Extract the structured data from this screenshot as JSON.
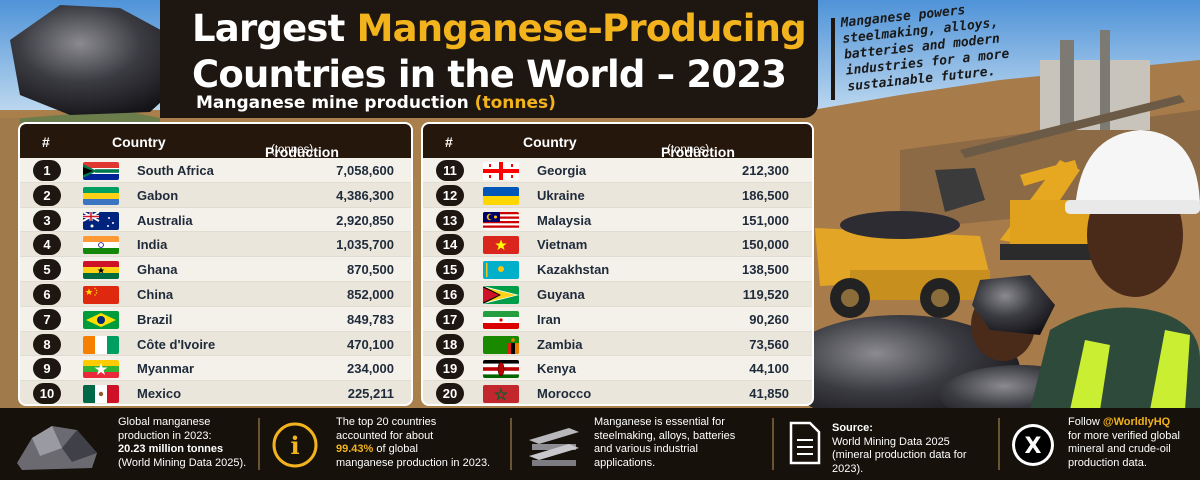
{
  "header": {
    "title_part1": "Largest ",
    "title_highlight": "Manganese-Producing",
    "title_line2": "Countries in the World – 2023",
    "subtitle": "Manganese mine production ",
    "subtitle_highlight": "(tonnes)",
    "tagline": "Manganese powers steelmaking, alloys, batteries and modern industries for a more sustainable future."
  },
  "table": {
    "col_rank": "#",
    "col_country": "Country",
    "col_production": "Production",
    "col_unit": "(tonnes)",
    "left": [
      {
        "rank": "1",
        "country": "South Africa",
        "production": "7,058,600",
        "flag": "za"
      },
      {
        "rank": "2",
        "country": "Gabon",
        "production": "4,386,300",
        "flag": "ga"
      },
      {
        "rank": "3",
        "country": "Australia",
        "production": "2,920,850",
        "flag": "au"
      },
      {
        "rank": "4",
        "country": "India",
        "production": "1,035,700",
        "flag": "in"
      },
      {
        "rank": "5",
        "country": "Ghana",
        "production": "870,500",
        "flag": "gh"
      },
      {
        "rank": "6",
        "country": "China",
        "production": "852,000",
        "flag": "cn"
      },
      {
        "rank": "7",
        "country": "Brazil",
        "production": "849,783",
        "flag": "br"
      },
      {
        "rank": "8",
        "country": "Côte d'Ivoire",
        "production": "470,100",
        "flag": "ci"
      },
      {
        "rank": "9",
        "country": "Myanmar",
        "production": "234,000",
        "flag": "mm"
      },
      {
        "rank": "10",
        "country": "Mexico",
        "production": "225,211",
        "flag": "mx"
      }
    ],
    "right": [
      {
        "rank": "11",
        "country": "Georgia",
        "production": "212,300",
        "flag": "ge"
      },
      {
        "rank": "12",
        "country": "Ukraine",
        "production": "186,500",
        "flag": "ua"
      },
      {
        "rank": "13",
        "country": "Malaysia",
        "production": "151,000",
        "flag": "my"
      },
      {
        "rank": "14",
        "country": "Vietnam",
        "production": "150,000",
        "flag": "vn"
      },
      {
        "rank": "15",
        "country": "Kazakhstan",
        "production": "138,500",
        "flag": "kz"
      },
      {
        "rank": "16",
        "country": "Guyana",
        "production": "119,520",
        "flag": "gy"
      },
      {
        "rank": "17",
        "country": "Iran",
        "production": "90,260",
        "flag": "ir"
      },
      {
        "rank": "18",
        "country": "Zambia",
        "production": "73,560",
        "flag": "zm"
      },
      {
        "rank": "19",
        "country": "Kenya",
        "production": "44,100",
        "flag": "ke"
      },
      {
        "rank": "20",
        "country": "Morocco",
        "production": "41,850",
        "flag": "ma"
      }
    ]
  },
  "footer": {
    "global_line1": "Global manganese",
    "global_line2": "production in 2023:",
    "global_value": "20.23 million tonnes",
    "global_source": "(World Mining Data 2025).",
    "share_line1": "The top 20 countries",
    "share_line2": "accounted for about",
    "share_value": "99.43%",
    "share_suffix": " of global",
    "share_line4": "manganese production in 2023.",
    "uses_line1": "Manganese is essential for",
    "uses_line2": "steelmaking, alloys, batteries",
    "uses_line3": "and various industrial",
    "uses_line4": "applications.",
    "source_label": "Source:",
    "source_line1": "World Mining Data 2025",
    "source_line2": "(mineral production data for 2023).",
    "follow_prefix": "Follow ",
    "follow_handle": "@WorldlyHQ",
    "follow_line2": "for more verified global",
    "follow_line3": "mineral and crude-oil",
    "follow_line4": "production data.",
    "info_icon_text": "i",
    "x_icon_text": "X"
  },
  "colors": {
    "accent": "#f2b31d",
    "dark": "#1e1611",
    "panel": "#f4f1ea"
  },
  "icons": [
    "manganese-ore-icon",
    "info-icon",
    "steel-beams-icon",
    "document-icon",
    "x-logo-icon"
  ]
}
